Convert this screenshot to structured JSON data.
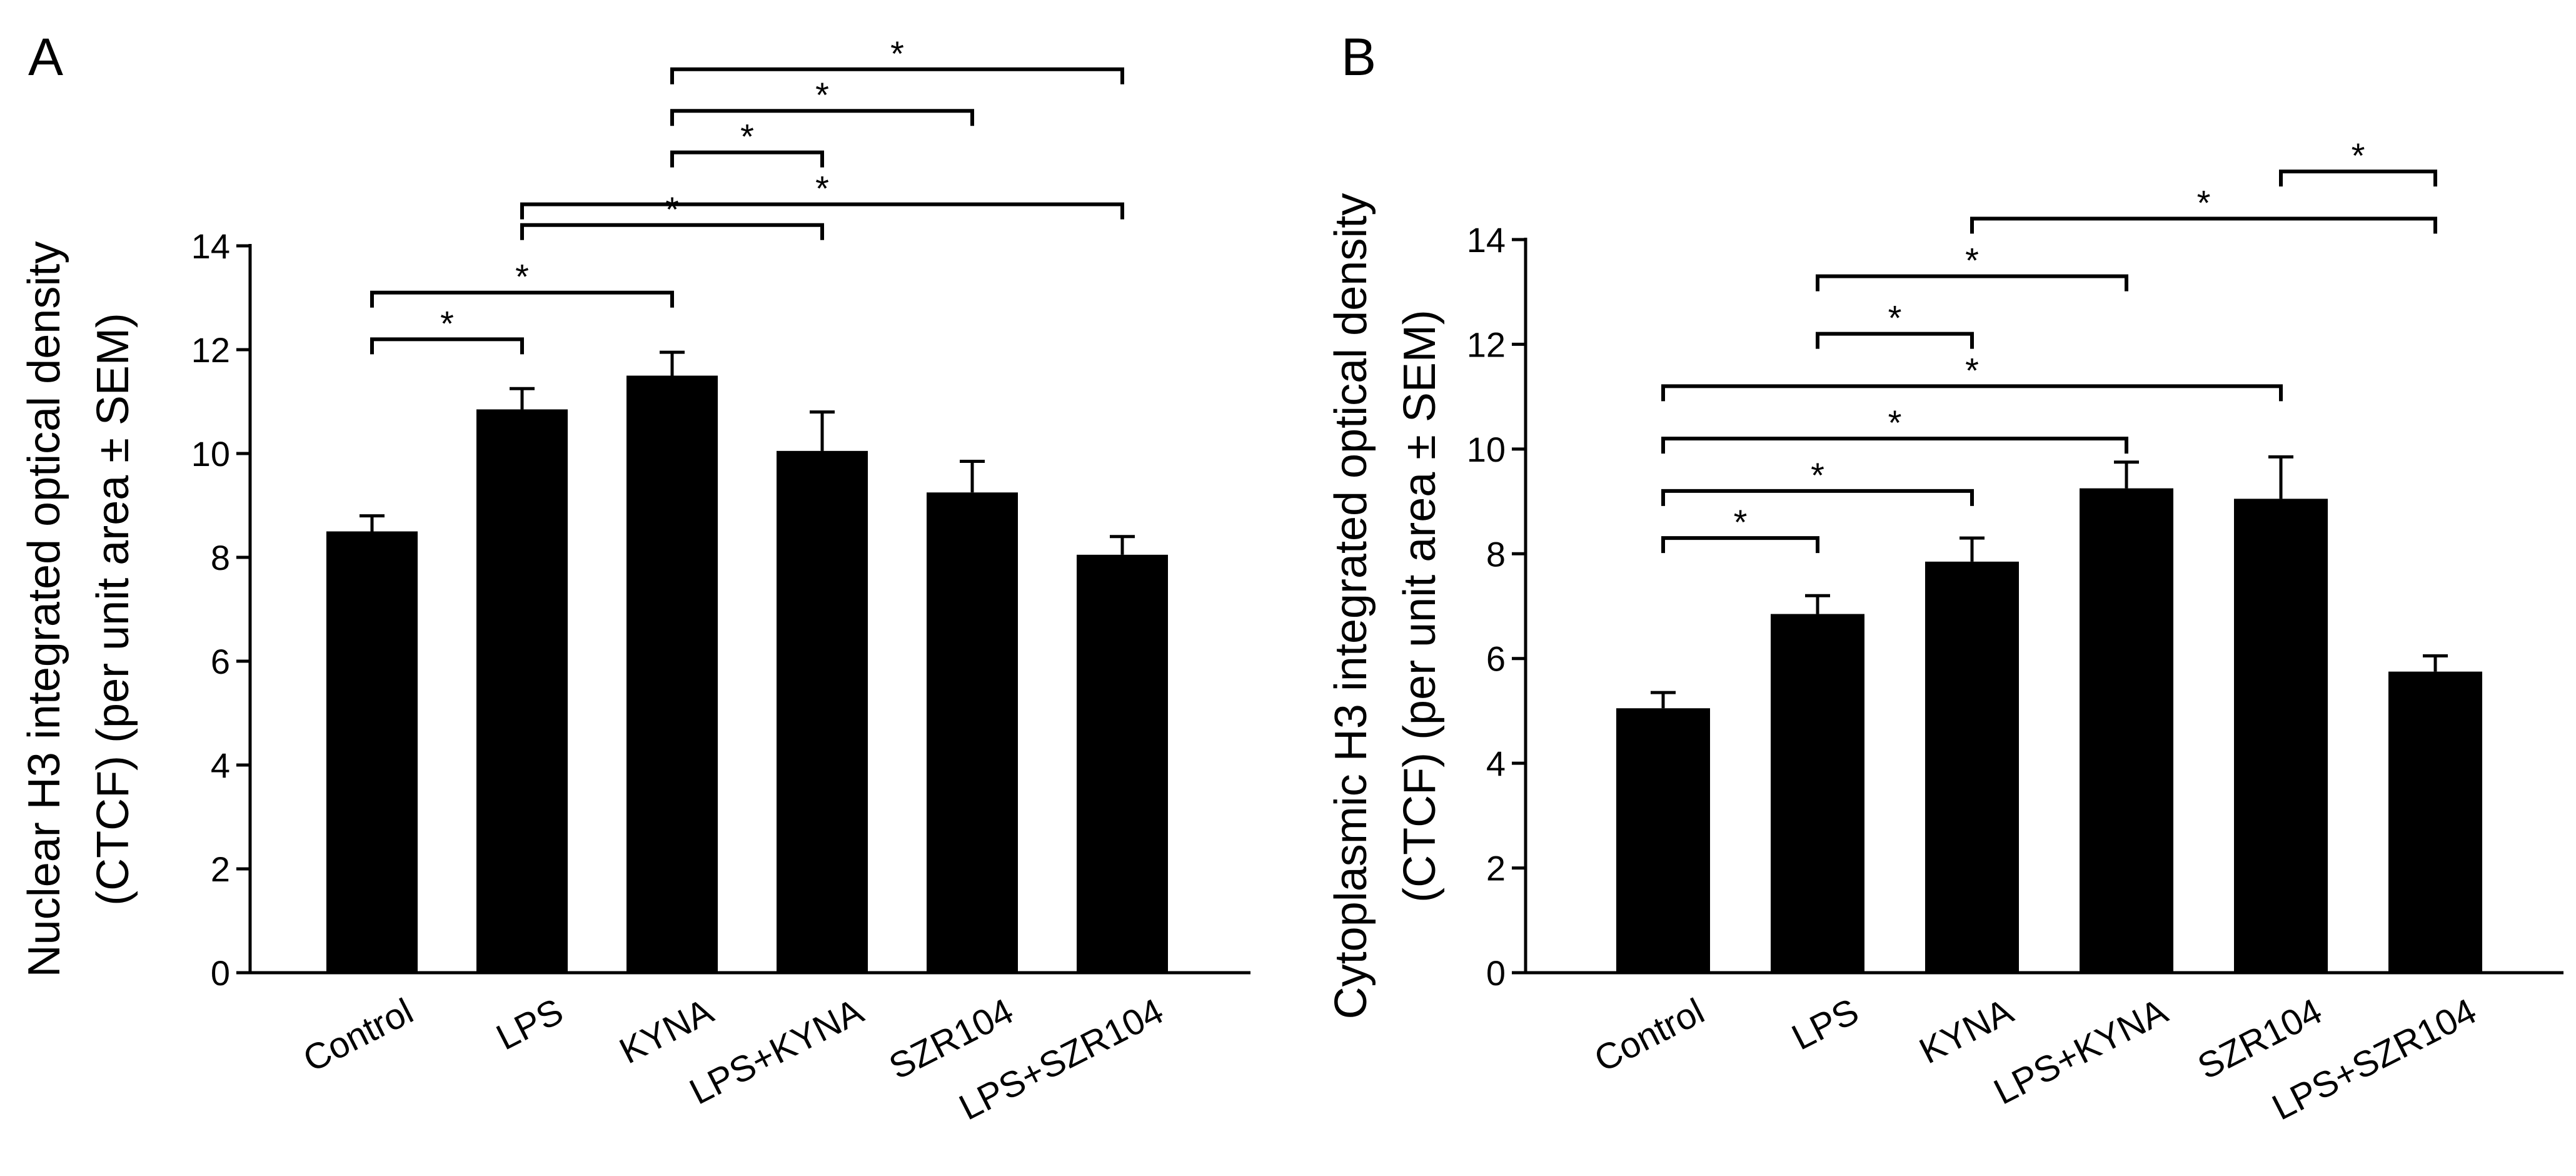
{
  "chart_data": [
    {
      "type": "bar",
      "panel_label": "A",
      "categories": [
        "Control",
        "LPS",
        "KYNA",
        "LPS+KYNA",
        "SZR104",
        "LPS+SZR104"
      ],
      "values": [
        8.5,
        10.85,
        11.5,
        10.05,
        9.25,
        8.05
      ],
      "errors": [
        0.3,
        0.4,
        0.45,
        0.75,
        0.6,
        0.35
      ],
      "ylabel_lines": [
        "Nuclear H3 integrated optical density",
        "(CTCF) (per unit area ± SEM)"
      ],
      "ylim": [
        0,
        14
      ],
      "yticks": [
        0,
        2,
        4,
        6,
        8,
        10,
        12,
        14
      ],
      "significance": [
        {
          "from": 0,
          "to": 1,
          "level": 12.2,
          "label": "*"
        },
        {
          "from": 0,
          "to": 2,
          "level": 13.1,
          "label": "*"
        },
        {
          "from": 1,
          "to": 3,
          "level": 14.4,
          "label": "*"
        },
        {
          "from": 1,
          "to": 5,
          "level": 14.8,
          "label": "*"
        },
        {
          "from": 2,
          "to": 3,
          "level": 15.8,
          "label": "*"
        },
        {
          "from": 2,
          "to": 4,
          "level": 16.6,
          "label": "*"
        },
        {
          "from": 2,
          "to": 5,
          "level": 17.4,
          "label": "*"
        }
      ]
    },
    {
      "type": "bar",
      "panel_label": "B",
      "categories": [
        "Control",
        "LPS",
        "KYNA",
        "LPS+KYNA",
        "SZR104",
        "LPS+SZR104"
      ],
      "values": [
        5.05,
        6.85,
        7.85,
        9.25,
        9.05,
        5.75
      ],
      "errors": [
        0.3,
        0.35,
        0.45,
        0.5,
        0.8,
        0.3
      ],
      "ylabel_lines": [
        "Cytoplasmic H3 integrated optical density",
        "(CTCF) (per unit area ± SEM)"
      ],
      "ylim": [
        0,
        14
      ],
      "yticks": [
        0,
        2,
        4,
        6,
        8,
        10,
        12,
        14
      ],
      "significance": [
        {
          "from": 0,
          "to": 1,
          "level": 8.3,
          "label": "*"
        },
        {
          "from": 0,
          "to": 2,
          "level": 9.2,
          "label": "*"
        },
        {
          "from": 0,
          "to": 3,
          "level": 10.2,
          "label": "*"
        },
        {
          "from": 0,
          "to": 4,
          "level": 11.2,
          "label": "*"
        },
        {
          "from": 1,
          "to": 2,
          "level": 12.2,
          "label": "*"
        },
        {
          "from": 1,
          "to": 3,
          "level": 13.3,
          "label": "*"
        },
        {
          "from": 2,
          "to": 5,
          "level": 14.4,
          "label": "*"
        },
        {
          "from": 4,
          "to": 5,
          "level": 15.3,
          "label": "*"
        }
      ]
    }
  ]
}
